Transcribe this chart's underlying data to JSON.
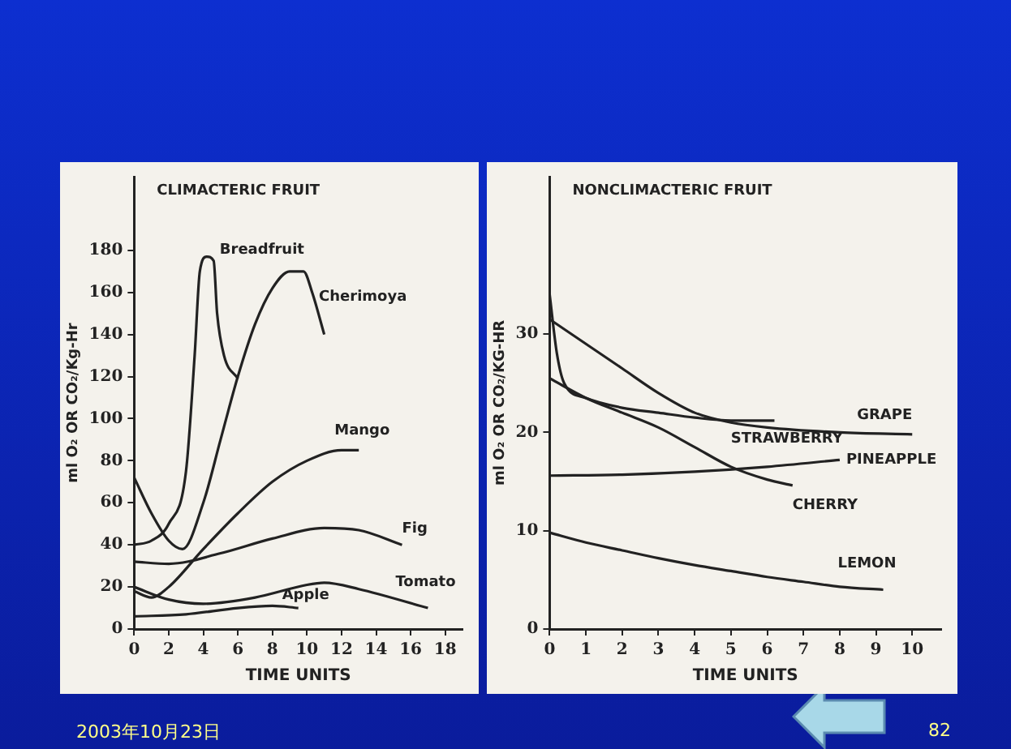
{
  "chart_data": [
    {
      "type": "line",
      "title": "CLIMACTERIC FRUIT",
      "xlabel": "TIME UNITS",
      "ylabel": "ml O₂ OR CO₂/Kg-Hr",
      "xlim": [
        0,
        19
      ],
      "xticks": [
        0,
        2,
        4,
        6,
        8,
        10,
        12,
        14,
        16,
        18
      ],
      "ylim": [
        0,
        215
      ],
      "yticks": [
        0,
        20,
        40,
        60,
        80,
        100,
        120,
        140,
        160,
        180
      ],
      "grid": false,
      "legend": false,
      "marker": "none",
      "line_style": "solid",
      "annotations": [
        "2003年10月23日",
        "82"
      ],
      "series": [
        {
          "name": "Breadfruit",
          "color": "#222222",
          "x": [
            0,
            1,
            2,
            3,
            3.5,
            3.8,
            4.2,
            4.6,
            4.8,
            5.2,
            6
          ],
          "values": [
            40,
            42,
            50,
            75,
            130,
            170,
            177,
            175,
            150,
            130,
            119
          ]
        },
        {
          "name": "Cherimoya",
          "color": "#222222",
          "x": [
            0,
            1,
            2,
            2.8,
            4,
            5,
            6,
            7,
            8,
            9,
            9.8,
            10.3,
            11
          ],
          "values": [
            72,
            55,
            42,
            38,
            60,
            90,
            120,
            145,
            162,
            170,
            170,
            160,
            140
          ]
        },
        {
          "name": "Mango",
          "color": "#222222",
          "x": [
            0,
            1,
            2,
            4,
            6,
            8,
            10,
            12,
            13
          ],
          "values": [
            18,
            15,
            20,
            38,
            55,
            70,
            80,
            85,
            85
          ]
        },
        {
          "name": "Fig",
          "color": "#222222",
          "x": [
            0,
            2,
            5,
            8,
            11,
            13,
            15.5
          ],
          "values": [
            32,
            31,
            36,
            43,
            48,
            47,
            40
          ]
        },
        {
          "name": "Tomato",
          "color": "#222222",
          "x": [
            0,
            2,
            4,
            7,
            10,
            11,
            13,
            17
          ],
          "values": [
            20,
            14,
            12,
            15,
            21,
            22,
            19,
            10
          ]
        },
        {
          "name": "Apple",
          "color": "#222222",
          "x": [
            0,
            3,
            6,
            8,
            9.5
          ],
          "values": [
            6,
            7,
            10,
            11,
            10
          ]
        }
      ]
    },
    {
      "type": "line",
      "title": "NONCLIMACTERIC FRUIT",
      "xlabel": "TIME UNITS",
      "ylabel": "ml O₂ OR CO₂/KG-HR",
      "xlim": [
        0,
        10.8
      ],
      "xticks": [
        0,
        1,
        2,
        3,
        4,
        5,
        6,
        7,
        8,
        9,
        10
      ],
      "ylim": [
        0,
        46
      ],
      "yticks": [
        0,
        10,
        20,
        30
      ],
      "grid": false,
      "legend": false,
      "marker": "none",
      "line_style": "solid",
      "series": [
        {
          "name": "STRAWBERRY",
          "color": "#222222",
          "x": [
            0,
            0.2,
            0.4,
            1,
            2,
            3,
            4,
            5,
            6.2
          ],
          "values": [
            34,
            28,
            25,
            23.5,
            22.5,
            22,
            21.5,
            21.2,
            21.2
          ]
        },
        {
          "name": "GRAPE",
          "color": "#222222",
          "x": [
            0,
            1,
            2,
            3,
            4,
            5,
            6,
            8,
            10
          ],
          "values": [
            31.5,
            29,
            26.5,
            24,
            22,
            21,
            20.5,
            20,
            19.8
          ]
        },
        {
          "name": "PINEAPPLE",
          "color": "#222222",
          "x": [
            0,
            2,
            4,
            6,
            8
          ],
          "values": [
            15.6,
            15.7,
            16,
            16.5,
            17.2
          ]
        },
        {
          "name": "CHERRY",
          "color": "#222222",
          "x": [
            0,
            1,
            2,
            3,
            4,
            5,
            6,
            6.7
          ],
          "values": [
            25.5,
            23.5,
            22,
            20.5,
            18.5,
            16.5,
            15.2,
            14.6
          ]
        },
        {
          "name": "LEMON",
          "color": "#222222",
          "x": [
            0,
            1,
            2,
            3,
            4,
            5,
            6,
            7,
            8,
            9.2
          ],
          "values": [
            9.8,
            8.8,
            8,
            7.2,
            6.5,
            5.9,
            5.3,
            4.8,
            4.3,
            4
          ]
        }
      ]
    }
  ]
}
